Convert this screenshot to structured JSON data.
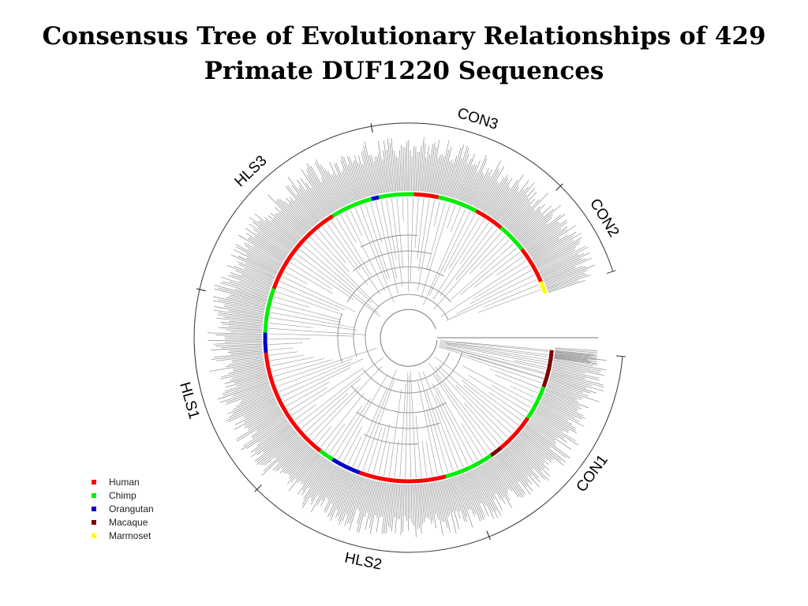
{
  "title": {
    "line1": "Consensus Tree of Evolutionary Relationships of 429",
    "line2": "Primate DUF1220 Sequences"
  },
  "clades": [
    {
      "id": "con3",
      "label": "CON3",
      "start_deg": 100,
      "end_deg": 45
    },
    {
      "id": "con2",
      "label": "CON2",
      "start_deg": 45,
      "end_deg": 18
    },
    {
      "id": "con1",
      "label": "CON1",
      "start_deg": -5,
      "end_deg": -68
    },
    {
      "id": "hls2",
      "label": "HLS2",
      "start_deg": -68,
      "end_deg": -135
    },
    {
      "id": "hls1",
      "label": "HLS1",
      "start_deg": -135,
      "end_deg": -193
    },
    {
      "id": "hls3",
      "label": "HLS3",
      "start_deg": -193,
      "end_deg": -260
    }
  ],
  "legend": [
    {
      "label": "Human",
      "color": "#ff0000"
    },
    {
      "label": "Chimp",
      "color": "#00ee00"
    },
    {
      "label": "Orangutan",
      "color": "#0000cc"
    },
    {
      "label": "Macaque",
      "color": "#800000"
    },
    {
      "label": "Marmoset",
      "color": "#ffff00"
    }
  ],
  "species_ring": [
    {
      "species": "Marmoset",
      "from_deg": 18,
      "to_deg": 23
    },
    {
      "species": "Human",
      "from_deg": 23,
      "to_deg": 38
    },
    {
      "species": "Chimp",
      "from_deg": 38,
      "to_deg": 50
    },
    {
      "species": "Human",
      "from_deg": 50,
      "to_deg": 62
    },
    {
      "species": "Chimp",
      "from_deg": 62,
      "to_deg": 78
    },
    {
      "species": "Human",
      "from_deg": 78,
      "to_deg": 88
    },
    {
      "species": "Chimp",
      "from_deg": 88,
      "to_deg": 102
    },
    {
      "species": "Orangutan",
      "from_deg": 102,
      "to_deg": 105
    },
    {
      "species": "Chimp",
      "from_deg": 105,
      "to_deg": 122
    },
    {
      "species": "Human",
      "from_deg": 122,
      "to_deg": 160
    },
    {
      "species": "Chimp",
      "from_deg": 160,
      "to_deg": 178
    },
    {
      "species": "Orangutan",
      "from_deg": 178,
      "to_deg": 186
    },
    {
      "species": "Human",
      "from_deg": 186,
      "to_deg": 232
    },
    {
      "species": "Chimp",
      "from_deg": 232,
      "to_deg": 238
    },
    {
      "species": "Orangutan",
      "from_deg": 238,
      "to_deg": 250
    },
    {
      "species": "Human",
      "from_deg": 250,
      "to_deg": 285
    },
    {
      "species": "Chimp",
      "from_deg": 285,
      "to_deg": 305
    },
    {
      "species": "Macaque",
      "from_deg": 305,
      "to_deg": 310
    },
    {
      "species": "Human",
      "from_deg": 310,
      "to_deg": 326
    },
    {
      "species": "Chimp",
      "from_deg": 326,
      "to_deg": 340
    },
    {
      "species": "Macaque",
      "from_deg": 340,
      "to_deg": 355
    }
  ]
}
